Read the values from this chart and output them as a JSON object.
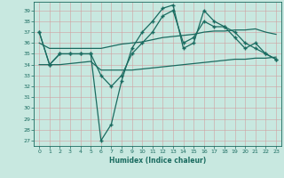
{
  "xlabel": "Humidex (Indice chaleur)",
  "bg_color": "#c8e8e0",
  "grid_color": "#aaaaaa",
  "line_color": "#1a6b60",
  "xlim": [
    -0.5,
    23.5
  ],
  "ylim": [
    26.5,
    39.8
  ],
  "yticks": [
    27,
    28,
    29,
    30,
    31,
    32,
    33,
    34,
    35,
    36,
    37,
    38,
    39
  ],
  "xticks": [
    0,
    1,
    2,
    3,
    4,
    5,
    6,
    7,
    8,
    9,
    10,
    11,
    12,
    13,
    14,
    15,
    16,
    17,
    18,
    19,
    20,
    21,
    22,
    23
  ],
  "series": {
    "line_volatile": [
      37,
      34,
      35,
      35,
      35,
      35,
      27,
      28.5,
      32.5,
      35.5,
      37,
      38,
      39.2,
      39.5,
      35.5,
      36,
      39,
      38,
      37.5,
      37,
      36,
      35.5,
      35,
      34.5
    ],
    "line_smooth1": [
      37,
      34,
      35,
      35,
      35,
      35,
      33,
      32,
      33,
      35,
      36,
      37,
      38.5,
      39,
      36,
      36.5,
      38,
      37.5,
      37.5,
      36.5,
      35.5,
      36,
      35,
      34.5
    ],
    "line_flat_high": [
      36,
      35.5,
      35.5,
      35.5,
      35.5,
      35.5,
      35.5,
      35.7,
      35.9,
      36.0,
      36.1,
      36.3,
      36.5,
      36.6,
      36.7,
      36.8,
      37.0,
      37.1,
      37.1,
      37.2,
      37.2,
      37.3,
      37.0,
      36.8
    ],
    "line_flat_low": [
      34,
      34,
      34,
      34.1,
      34.2,
      34.3,
      33.5,
      33.5,
      33.5,
      33.5,
      33.6,
      33.7,
      33.8,
      33.9,
      34.0,
      34.1,
      34.2,
      34.3,
      34.4,
      34.5,
      34.5,
      34.6,
      34.6,
      34.7
    ]
  }
}
